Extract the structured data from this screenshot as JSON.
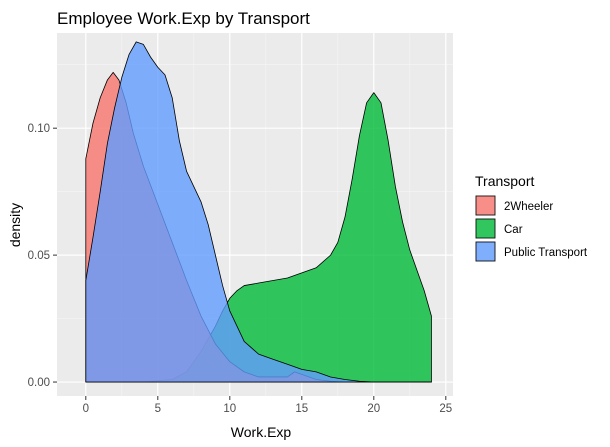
{
  "chart_data": {
    "type": "area",
    "subtype": "density",
    "title": "Employee Work.Exp by Transport",
    "xlabel": "Work.Exp",
    "ylabel": "density",
    "xlim": [
      -2,
      25.5
    ],
    "ylim": [
      -0.0055,
      0.1375
    ],
    "x_ticks": [
      0,
      5,
      10,
      15,
      20,
      25
    ],
    "x_tick_labels": [
      "0",
      "5",
      "10",
      "15",
      "20",
      "25"
    ],
    "y_ticks": [
      0.0,
      0.05,
      0.1
    ],
    "y_tick_labels": [
      "0.00",
      "0.05",
      "0.10"
    ],
    "grid": true,
    "legend": {
      "title": "Transport",
      "position": "right"
    },
    "series": [
      {
        "name": "Car",
        "color": "#00BA38",
        "points": [
          [
            0,
            0
          ],
          [
            2,
            0
          ],
          [
            4,
            0
          ],
          [
            5,
            0.0005
          ],
          [
            6,
            0.001
          ],
          [
            7,
            0.004
          ],
          [
            8,
            0.012
          ],
          [
            9,
            0.022
          ],
          [
            9.5,
            0.028
          ],
          [
            10,
            0.033
          ],
          [
            10.5,
            0.036
          ],
          [
            11,
            0.038
          ],
          [
            12,
            0.039
          ],
          [
            13,
            0.04
          ],
          [
            14,
            0.041
          ],
          [
            15,
            0.043
          ],
          [
            16,
            0.045
          ],
          [
            17,
            0.05
          ],
          [
            17.5,
            0.055
          ],
          [
            18,
            0.065
          ],
          [
            18.5,
            0.08
          ],
          [
            19,
            0.097
          ],
          [
            19.5,
            0.11
          ],
          [
            20,
            0.114
          ],
          [
            20.5,
            0.11
          ],
          [
            21,
            0.095
          ],
          [
            21.5,
            0.077
          ],
          [
            22,
            0.063
          ],
          [
            22.5,
            0.052
          ],
          [
            23,
            0.044
          ],
          [
            23.5,
            0.036
          ],
          [
            24,
            0.026
          ]
        ]
      },
      {
        "name": "2Wheeler",
        "color": "#F8766D",
        "points": [
          [
            0,
            0.088
          ],
          [
            0.5,
            0.102
          ],
          [
            1,
            0.112
          ],
          [
            1.5,
            0.119
          ],
          [
            1.9,
            0.122
          ],
          [
            2.3,
            0.119
          ],
          [
            2.8,
            0.11
          ],
          [
            3.3,
            0.098
          ],
          [
            4,
            0.085
          ],
          [
            5,
            0.07
          ],
          [
            6,
            0.055
          ],
          [
            7,
            0.04
          ],
          [
            8,
            0.026
          ],
          [
            9,
            0.015
          ],
          [
            10,
            0.008
          ],
          [
            11,
            0.004
          ],
          [
            12,
            0.002
          ],
          [
            14,
            0.002
          ],
          [
            14.5,
            0.004
          ],
          [
            15,
            0.003
          ],
          [
            16,
            0.001
          ],
          [
            17,
            0.0003
          ],
          [
            18,
            0
          ],
          [
            24,
            0
          ]
        ]
      },
      {
        "name": "Public Transport",
        "color": "#619CFF",
        "points": [
          [
            0,
            0.04
          ],
          [
            0.5,
            0.057
          ],
          [
            1,
            0.075
          ],
          [
            1.5,
            0.094
          ],
          [
            2,
            0.108
          ],
          [
            2.5,
            0.12
          ],
          [
            3,
            0.129
          ],
          [
            3.5,
            0.134
          ],
          [
            4,
            0.133
          ],
          [
            4.5,
            0.128
          ],
          [
            5,
            0.124
          ],
          [
            5.5,
            0.121
          ],
          [
            6,
            0.112
          ],
          [
            6.5,
            0.095
          ],
          [
            7,
            0.083
          ],
          [
            7.5,
            0.077
          ],
          [
            8,
            0.071
          ],
          [
            8.5,
            0.062
          ],
          [
            9,
            0.05
          ],
          [
            9.5,
            0.038
          ],
          [
            10,
            0.028
          ],
          [
            11,
            0.016
          ],
          [
            12,
            0.011
          ],
          [
            13,
            0.009
          ],
          [
            14,
            0.007
          ],
          [
            15,
            0.005
          ],
          [
            16,
            0.004
          ],
          [
            17,
            0.002
          ],
          [
            18,
            0.001
          ],
          [
            19,
            0.0003
          ],
          [
            20,
            0
          ],
          [
            24,
            0
          ]
        ]
      }
    ]
  }
}
